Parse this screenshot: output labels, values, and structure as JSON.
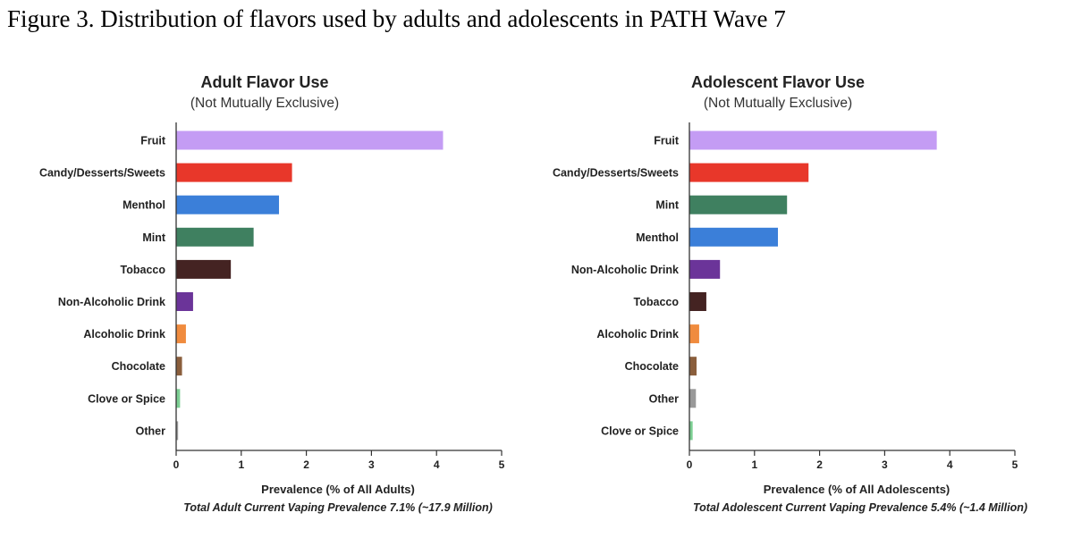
{
  "caption": "Figure 3. Distribution of flavors used by adults and adolescents in PATH Wave 7",
  "chart_data": [
    {
      "type": "bar",
      "orientation": "horizontal",
      "title": "Adult Flavor Use",
      "subtitle": "(Not Mutually Exclusive)",
      "categories": [
        "Fruit",
        "Candy/Desserts/Sweets",
        "Menthol",
        "Mint",
        "Tobacco",
        "Non-Alcoholic Drink",
        "Alcoholic Drink",
        "Chocolate",
        "Clove or Spice",
        "Other"
      ],
      "values": [
        4.1,
        1.78,
        1.58,
        1.19,
        0.84,
        0.26,
        0.15,
        0.09,
        0.06,
        0.03
      ],
      "colors": [
        "#c49cf4",
        "#e8372a",
        "#3b7fd9",
        "#3f8060",
        "#442322",
        "#6b3499",
        "#f08b3e",
        "#8a5e3c",
        "#7ccf93",
        "#999999"
      ],
      "xlabel": "Prevalence (% of All Adults)",
      "note": "Total Adult Current Vaping Prevalence 7.1% (~17.9 Million)",
      "xlim": [
        0,
        5
      ],
      "xticks": [
        "0",
        "1",
        "2",
        "3",
        "4",
        "5"
      ],
      "grid": false
    },
    {
      "type": "bar",
      "orientation": "horizontal",
      "title": "Adolescent Flavor Use",
      "subtitle": "(Not Mutually Exclusive)",
      "categories": [
        "Fruit",
        "Candy/Desserts/Sweets",
        "Mint",
        "Menthol",
        "Non-Alcoholic Drink",
        "Tobacco",
        "Alcoholic Drink",
        "Chocolate",
        "Other",
        "Clove or Spice"
      ],
      "values": [
        3.8,
        1.83,
        1.5,
        1.36,
        0.47,
        0.26,
        0.15,
        0.11,
        0.1,
        0.05
      ],
      "colors": [
        "#c49cf4",
        "#e8372a",
        "#3f8060",
        "#3b7fd9",
        "#6b3499",
        "#442322",
        "#f08b3e",
        "#8a5e3c",
        "#999999",
        "#7ccf93"
      ],
      "xlabel": "Prevalence (% of All Adolescents)",
      "note": "Total Adolescent Current Vaping Prevalence 5.4% (~1.4 Million)",
      "xlim": [
        0,
        5
      ],
      "xticks": [
        "0",
        "1",
        "2",
        "3",
        "4",
        "5"
      ],
      "grid": false
    }
  ]
}
